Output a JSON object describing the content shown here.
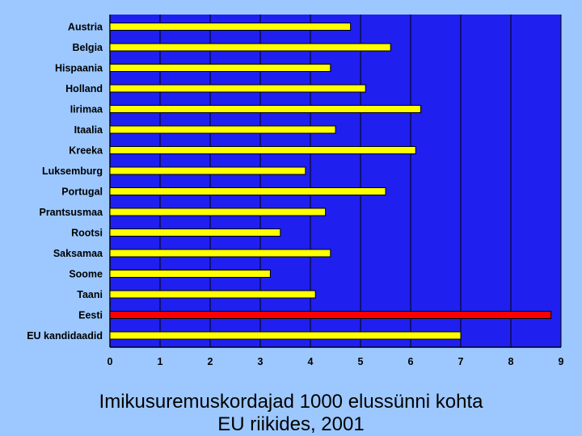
{
  "colors": {
    "page_background": "#9cc8ff",
    "plot_background": "#1f1ff0",
    "bar_default": "#ffff00",
    "bar_highlight": "#ff0000",
    "bar_outline": "#000000",
    "gridline": "#000000"
  },
  "caption": {
    "line1": "Imikusuremuskordajad 1000 elussünni kohta",
    "line2": "EU riikides, 2001"
  },
  "chart_data": {
    "type": "bar",
    "orientation": "horizontal",
    "categories": [
      "Austria",
      "Belgia",
      "Hispaania",
      "Holland",
      "Iirimaa",
      "Itaalia",
      "Kreeka",
      "Luksemburg",
      "Portugal",
      "Prantsusmaa",
      "Rootsi",
      "Saksamaa",
      "Soome",
      "Taani",
      "Eesti",
      "EU kandidaadid"
    ],
    "values": [
      4.8,
      5.6,
      4.4,
      5.1,
      6.2,
      4.5,
      6.1,
      3.9,
      5.5,
      4.3,
      3.4,
      4.4,
      3.2,
      4.1,
      8.8,
      7.0
    ],
    "highlight_category": "Eesti",
    "xlim": [
      0,
      9
    ],
    "xticks": [
      "0",
      "1",
      "2",
      "3",
      "4",
      "5",
      "6",
      "7",
      "8",
      "9"
    ],
    "grid": "vertical",
    "legend": "none"
  }
}
